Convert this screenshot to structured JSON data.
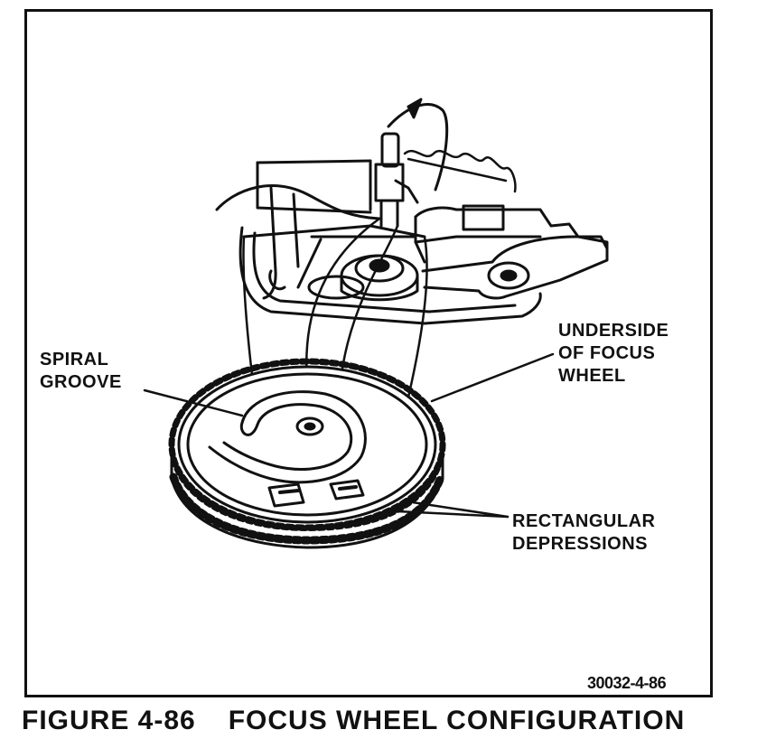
{
  "labels": {
    "spiral_groove": [
      "SPIRAL",
      "GROOVE"
    ],
    "underside": [
      "UNDERSIDE",
      "OF FOCUS",
      "WHEEL"
    ],
    "rectangular": [
      "RECTANGULAR",
      "DEPRESSIONS"
    ]
  },
  "figure_number": "30032-4-86",
  "caption": {
    "figure": "FIGURE 4-86",
    "title": "FOCUS WHEEL CONFIGURATION"
  },
  "colors": {
    "ink": "#111111",
    "paper": "#ffffff"
  }
}
